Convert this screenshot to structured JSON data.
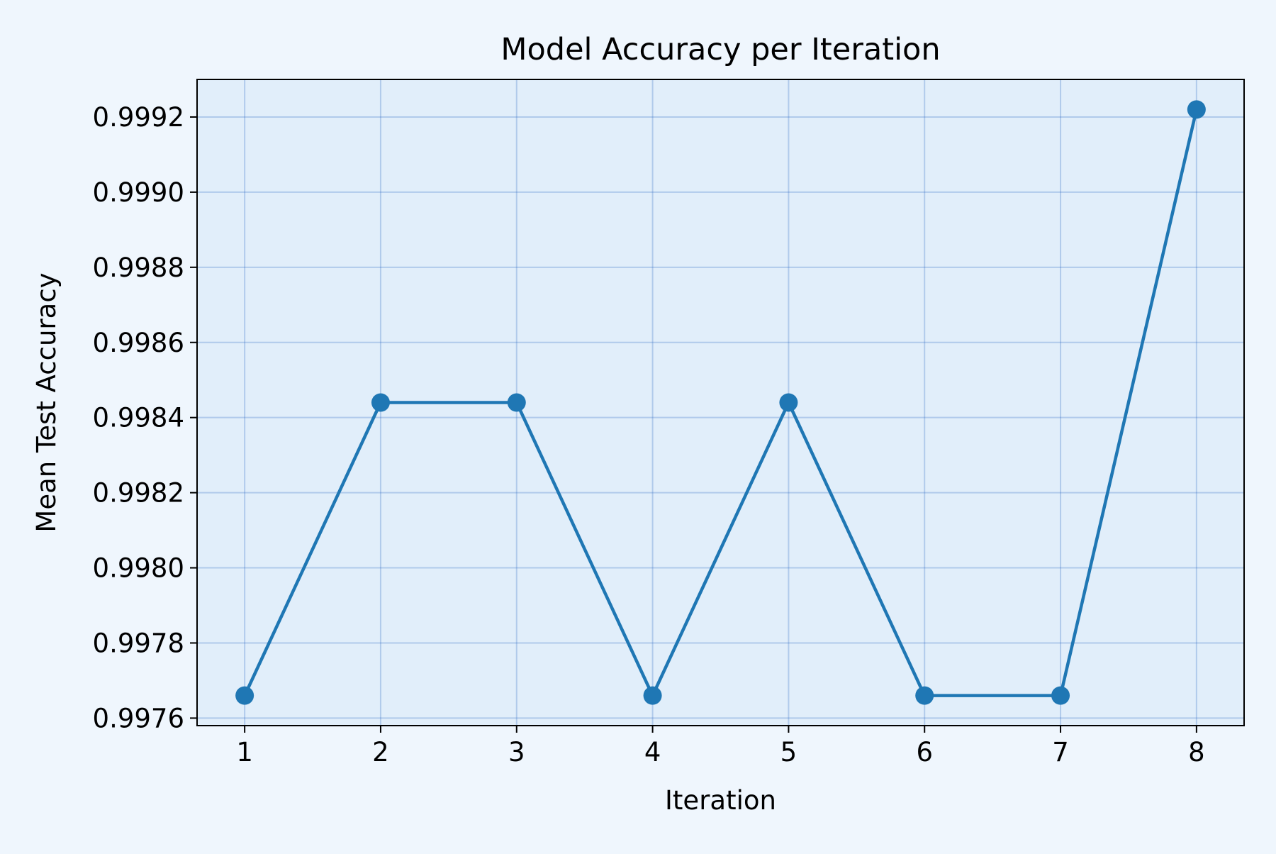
{
  "chart_data": {
    "type": "line",
    "title": "Model Accuracy per Iteration",
    "xlabel": "Iteration",
    "ylabel": "Mean Test Accuracy",
    "x": [
      1,
      2,
      3,
      4,
      5,
      6,
      7,
      8
    ],
    "series": [
      {
        "values": [
          0.99766,
          0.99844,
          0.99844,
          0.99766,
          0.99844,
          0.99766,
          0.99766,
          0.99922
        ]
      }
    ],
    "xlim": [
      0.65,
      8.35
    ],
    "ylim": [
      0.99758,
      0.9993
    ],
    "xticks": [
      1,
      2,
      3,
      4,
      5,
      6,
      7,
      8
    ],
    "xtick_labels": [
      "1",
      "2",
      "3",
      "4",
      "5",
      "6",
      "7",
      "8"
    ],
    "yticks": [
      0.9976,
      0.9978,
      0.998,
      0.9982,
      0.9984,
      0.9986,
      0.9988,
      0.999,
      0.9992
    ],
    "ytick_labels": [
      "0.9976",
      "0.9978",
      "0.9980",
      "0.9982",
      "0.9984",
      "0.9986",
      "0.9988",
      "0.9990",
      "0.9992"
    ],
    "grid": true,
    "markers": true,
    "colors": {
      "figure_background": "#eff6fd",
      "plot_background": "#e1eefa",
      "line": "#1f77b4",
      "grid": "#1f5fbf"
    }
  }
}
